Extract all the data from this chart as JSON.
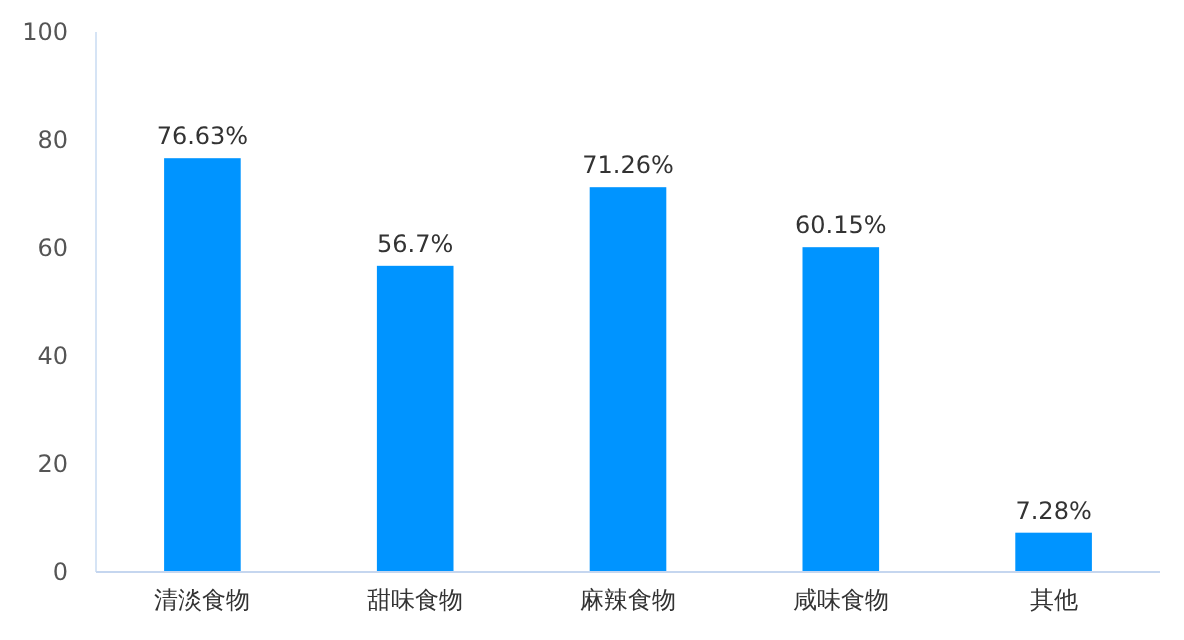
{
  "chart_data": {
    "type": "bar",
    "categories": [
      "清淡食物",
      "甜味食物",
      "麻辣食物",
      "咸味食物",
      "其他"
    ],
    "values": [
      76.63,
      56.7,
      71.26,
      60.15,
      7.28
    ],
    "value_labels": [
      "76.63%",
      "56.7%",
      "71.26%",
      "60.15%",
      "7.28%"
    ],
    "color": "#0094ff",
    "ylim": [
      0,
      100
    ],
    "yticks": [
      0,
      20,
      40,
      60,
      80,
      100
    ],
    "grid": false
  }
}
